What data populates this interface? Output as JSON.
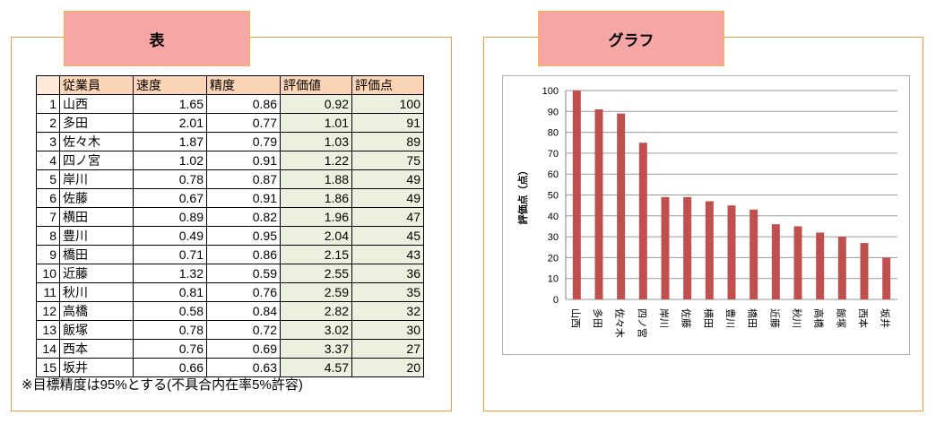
{
  "left_tab": "表",
  "right_tab": "グラフ",
  "table": {
    "headers": [
      "",
      "従業員",
      "速度",
      "精度",
      "評価値",
      "評価点"
    ],
    "rows": [
      {
        "no": "1",
        "name": "山西",
        "speed": "1.65",
        "precision": "0.86",
        "eval": "0.92",
        "score": "100"
      },
      {
        "no": "2",
        "name": "多田",
        "speed": "2.01",
        "precision": "0.77",
        "eval": "1.01",
        "score": "91"
      },
      {
        "no": "3",
        "name": "佐々木",
        "speed": "1.87",
        "precision": "0.79",
        "eval": "1.03",
        "score": "89"
      },
      {
        "no": "4",
        "name": "四ノ宮",
        "speed": "1.02",
        "precision": "0.91",
        "eval": "1.22",
        "score": "75"
      },
      {
        "no": "5",
        "name": "岸川",
        "speed": "0.78",
        "precision": "0.87",
        "eval": "1.88",
        "score": "49"
      },
      {
        "no": "6",
        "name": "佐藤",
        "speed": "0.67",
        "precision": "0.91",
        "eval": "1.86",
        "score": "49"
      },
      {
        "no": "7",
        "name": "横田",
        "speed": "0.89",
        "precision": "0.82",
        "eval": "1.96",
        "score": "47"
      },
      {
        "no": "8",
        "name": "豊川",
        "speed": "0.49",
        "precision": "0.95",
        "eval": "2.04",
        "score": "45"
      },
      {
        "no": "9",
        "name": "橋田",
        "speed": "0.71",
        "precision": "0.86",
        "eval": "2.15",
        "score": "43"
      },
      {
        "no": "10",
        "name": "近藤",
        "speed": "1.32",
        "precision": "0.59",
        "eval": "2.55",
        "score": "36"
      },
      {
        "no": "11",
        "name": "秋川",
        "speed": "0.81",
        "precision": "0.76",
        "eval": "2.59",
        "score": "35"
      },
      {
        "no": "12",
        "name": "高橋",
        "speed": "0.58",
        "precision": "0.84",
        "eval": "2.82",
        "score": "32"
      },
      {
        "no": "13",
        "name": "飯塚",
        "speed": "0.78",
        "precision": "0.72",
        "eval": "3.02",
        "score": "30"
      },
      {
        "no": "14",
        "name": "西本",
        "speed": "0.76",
        "precision": "0.69",
        "eval": "3.37",
        "score": "27"
      },
      {
        "no": "15",
        "name": "坂井",
        "speed": "0.66",
        "precision": "0.63",
        "eval": "4.57",
        "score": "20"
      }
    ]
  },
  "note": "※目標精度は95%とする(不具合内在率5%許容)",
  "chart_data": {
    "type": "bar",
    "categories": [
      "山西",
      "多田",
      "佐々木",
      "四ノ宮",
      "岸川",
      "佐藤",
      "横田",
      "豊川",
      "橋田",
      "近藤",
      "秋川",
      "高橋",
      "飯塚",
      "西本",
      "坂井"
    ],
    "values": [
      100,
      91,
      89,
      75,
      49,
      49,
      47,
      45,
      43,
      36,
      35,
      32,
      30,
      27,
      20
    ],
    "ylabel": "評価点（点）",
    "ylim": [
      0,
      100
    ],
    "yticks": [
      0,
      10,
      20,
      30,
      40,
      50,
      60,
      70,
      80,
      90,
      100
    ],
    "grid": true,
    "bar_color": "#c0504d"
  }
}
